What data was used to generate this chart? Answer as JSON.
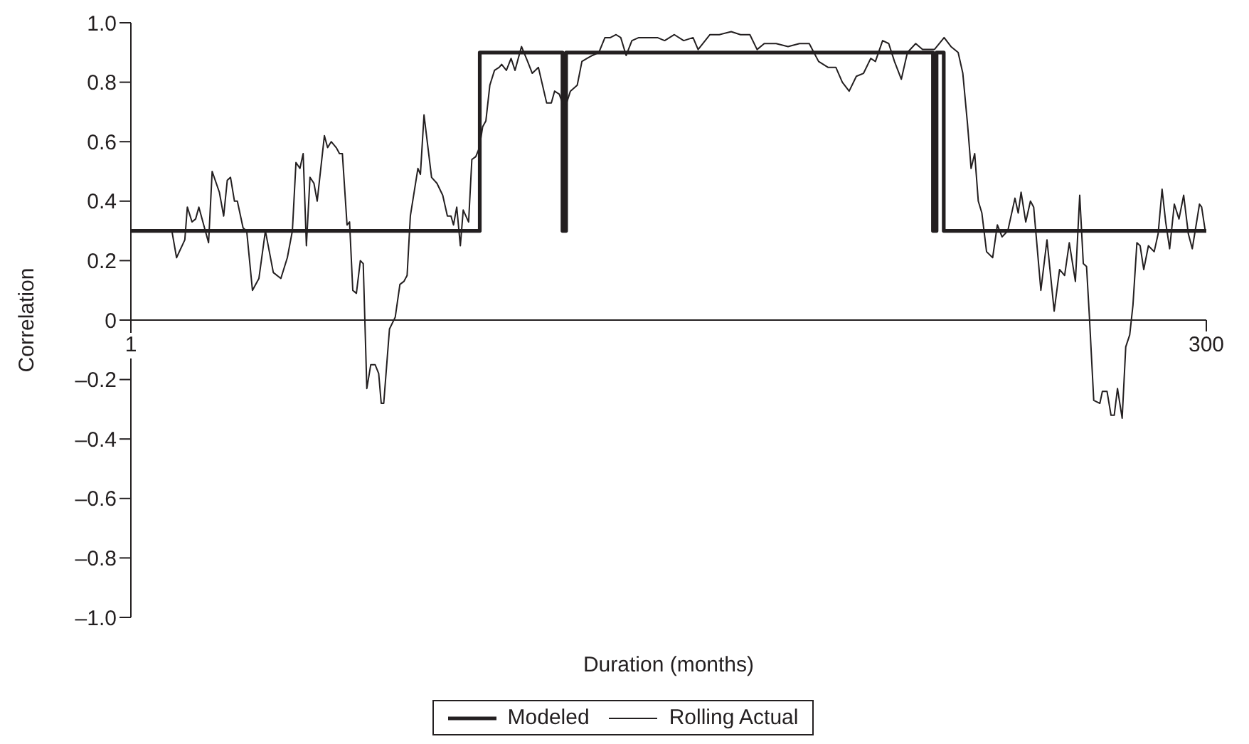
{
  "chart_data": {
    "type": "line",
    "xlabel": "Duration (months)",
    "ylabel": "Correlation",
    "xlim": [
      1,
      300
    ],
    "xticks": [
      1,
      300
    ],
    "ylim": [
      -1,
      1
    ],
    "yticks": [
      {
        "value": -1,
        "label": "–1.0"
      },
      {
        "value": -0.8,
        "label": "–0.8"
      },
      {
        "value": -0.6,
        "label": "–0.6"
      },
      {
        "value": -0.4,
        "label": "–0.4"
      },
      {
        "value": -0.2,
        "label": "–0.2"
      },
      {
        "value": 0,
        "label": "0"
      },
      {
        "value": 0.2,
        "label": "0.2"
      },
      {
        "value": 0.4,
        "label": "0.4"
      },
      {
        "value": 0.6,
        "label": "0.6"
      },
      {
        "value": 0.8,
        "label": "0.8"
      },
      {
        "value": 1,
        "label": "1.0"
      }
    ],
    "grid": false,
    "legend": "bottom",
    "marker": "none",
    "line_style": "solid",
    "series": [
      {
        "name": "Modeled",
        "color": "#231f20",
        "x": [
          1,
          98,
          98,
          121,
          121,
          122,
          122,
          224,
          224,
          225,
          225,
          227,
          227,
          228,
          228,
          300
        ],
        "values": [
          0.3,
          0.3,
          0.9,
          0.9,
          0.3,
          0.3,
          0.9,
          0.9,
          0.3,
          0.3,
          0.9,
          0.9,
          0.3,
          0.3,
          0.3,
          0.3
        ]
      },
      {
        "name": "Rolling Actual",
        "color": "#231f20",
        "x": [
          12.4,
          13.7,
          16.0,
          16.7,
          18.0,
          19.0,
          19.9,
          22.6,
          23.6,
          25.6,
          26.8,
          27.8,
          28.7,
          29.8,
          30.6,
          32.2,
          33.2,
          34.8,
          36.6,
          38.4,
          40.6,
          42.7,
          44.5,
          45.9,
          46.9,
          48.0,
          48.9,
          49.8,
          50.8,
          51.9,
          52.8,
          54.8,
          55.7,
          56.7,
          58.1,
          59.0,
          59.8,
          61.1,
          61.8,
          62.7,
          63.7,
          64.8,
          65.6,
          66.6,
          67.7,
          68.9,
          69.9,
          70.6,
          71.3,
          72.9,
          74.5,
          75.8,
          76.9,
          77.8,
          78.7,
          80.8,
          81.5,
          82.5,
          84.6,
          86.1,
          87.7,
          89.0,
          90.0,
          90.7,
          91.6,
          92.6,
          93.4,
          94.9,
          95.8,
          96.9,
          97.9,
          98.8,
          99.7,
          100.8,
          102.1,
          103.4,
          104.1,
          105.4,
          106.7,
          107.8,
          109.6,
          111.3,
          112.6,
          114.3,
          116.6,
          117.9,
          118.8,
          120.1,
          121.6,
          123.2,
          125.1,
          126.4,
          127.8,
          129.3,
          131.1,
          132.8,
          134.3,
          135.9,
          137.2,
          138.7,
          140.3,
          142.2,
          144.8,
          147.4,
          149.4,
          152.1,
          154.7,
          157.3,
          158.7,
          160.0,
          162.0,
          164.6,
          167.9,
          170.5,
          173.1,
          175.1,
          177.1,
          180.4,
          183.7,
          186.9,
          189.6,
          192.2,
          194.8,
          197.0,
          198.8,
          200.7,
          202.7,
          204.7,
          206.7,
          208.0,
          210.0,
          211.7,
          213.3,
          215.2,
          216.9,
          219.2,
          221.1,
          224.4,
          227.1,
          229.0,
          231.0,
          232.3,
          233.6,
          234.6,
          235.6,
          236.6,
          237.6,
          238.9,
          240.6,
          241.9,
          243.2,
          244.8,
          246.8,
          247.7,
          248.5,
          249.8,
          251.1,
          252.0,
          254.0,
          255.7,
          257.7,
          259.2,
          260.6,
          261.9,
          263.6,
          264.8,
          265.8,
          266.7,
          267.5,
          268.7,
          270.4,
          271.1,
          272.4,
          273.5,
          274.4,
          275.3,
          276.6,
          277.6,
          278.7,
          279.6,
          280.7,
          281.6,
          282.6,
          283.9,
          285.5,
          286.6,
          287.7,
          288.7,
          289.8,
          291.1,
          292.4,
          293.7,
          295.0,
          296.1,
          298.1,
          298.7,
          299.7
        ],
        "values": [
          0.3,
          0.21,
          0.27,
          0.38,
          0.33,
          0.34,
          0.38,
          0.26,
          0.5,
          0.43,
          0.35,
          0.47,
          0.48,
          0.4,
          0.4,
          0.31,
          0.3,
          0.1,
          0.14,
          0.3,
          0.16,
          0.14,
          0.21,
          0.3,
          0.53,
          0.51,
          0.56,
          0.25,
          0.48,
          0.46,
          0.4,
          0.62,
          0.58,
          0.6,
          0.58,
          0.56,
          0.56,
          0.32,
          0.33,
          0.1,
          0.09,
          0.2,
          0.19,
          -0.23,
          -0.15,
          -0.15,
          -0.18,
          -0.28,
          -0.28,
          -0.03,
          0.01,
          0.12,
          0.13,
          0.15,
          0.35,
          0.51,
          0.49,
          0.69,
          0.48,
          0.46,
          0.42,
          0.35,
          0.35,
          0.32,
          0.38,
          0.25,
          0.37,
          0.33,
          0.54,
          0.55,
          0.58,
          0.65,
          0.67,
          0.79,
          0.84,
          0.85,
          0.86,
          0.84,
          0.88,
          0.84,
          0.92,
          0.87,
          0.83,
          0.85,
          0.73,
          0.73,
          0.77,
          0.76,
          0.71,
          0.77,
          0.79,
          0.87,
          0.88,
          0.89,
          0.9,
          0.95,
          0.95,
          0.96,
          0.95,
          0.89,
          0.94,
          0.95,
          0.95,
          0.95,
          0.94,
          0.96,
          0.94,
          0.95,
          0.91,
          0.93,
          0.96,
          0.96,
          0.97,
          0.96,
          0.96,
          0.91,
          0.93,
          0.93,
          0.92,
          0.93,
          0.93,
          0.87,
          0.85,
          0.85,
          0.8,
          0.77,
          0.82,
          0.83,
          0.88,
          0.87,
          0.94,
          0.93,
          0.87,
          0.81,
          0.9,
          0.93,
          0.91,
          0.91,
          0.95,
          0.92,
          0.9,
          0.83,
          0.66,
          0.51,
          0.56,
          0.4,
          0.36,
          0.23,
          0.21,
          0.32,
          0.28,
          0.3,
          0.41,
          0.36,
          0.43,
          0.33,
          0.4,
          0.38,
          0.1,
          0.27,
          0.03,
          0.17,
          0.15,
          0.26,
          0.13,
          0.42,
          0.19,
          0.18,
          0.01,
          -0.27,
          -0.28,
          -0.24,
          -0.24,
          -0.32,
          -0.32,
          -0.23,
          -0.33,
          -0.09,
          -0.05,
          0.05,
          0.26,
          0.25,
          0.17,
          0.25,
          0.23,
          0.29,
          0.44,
          0.33,
          0.24,
          0.39,
          0.34,
          0.42,
          0.29,
          0.24,
          0.39,
          0.38,
          0.3
        ]
      }
    ]
  }
}
